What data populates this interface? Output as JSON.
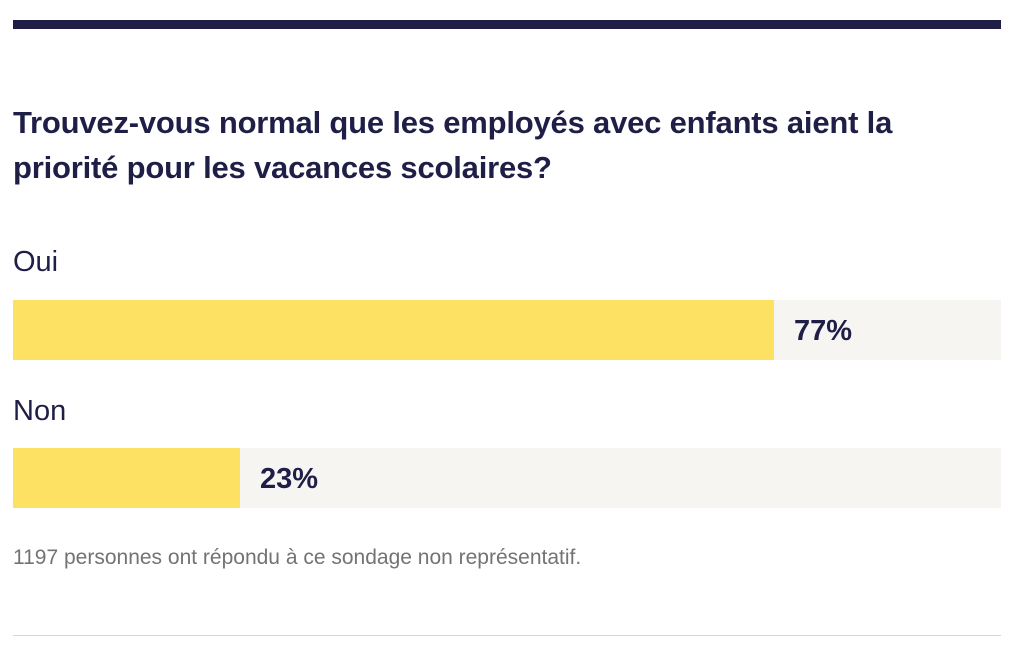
{
  "poll": {
    "question": "Trouvez-vous normal que les employés avec enfants aient la priorité pour les vacances scolaires?",
    "options": [
      {
        "label": "Oui",
        "percent_text": "77%",
        "fraction": 0.77
      },
      {
        "label": "Non",
        "percent_text": "23%",
        "fraction": 0.23
      }
    ],
    "footnote": "1197 personnes ont répondu à ce sondage non représentatif."
  },
  "colors": {
    "accent_dark": "#1f1e47",
    "bar_fill": "#fde162",
    "bar_track": "#f6f5f2",
    "footnote": "#737373"
  }
}
